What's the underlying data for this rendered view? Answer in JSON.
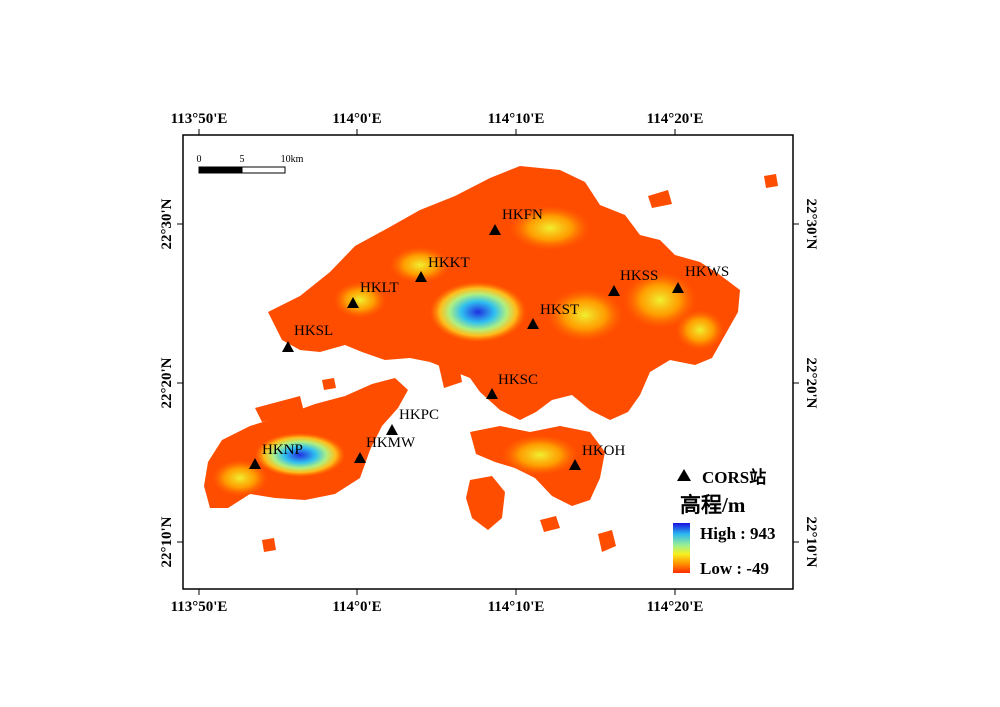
{
  "map": {
    "lon_ticks": [
      "113°50'E",
      "114°0'E",
      "114°10'E",
      "114°20'E"
    ],
    "lat_ticks": [
      "22°30'N",
      "22°20'N",
      "22°10'N"
    ],
    "scale_bar": {
      "labels": [
        "0",
        "5",
        "10km"
      ]
    },
    "stations": [
      {
        "name": "HKFN"
      },
      {
        "name": "HKKT"
      },
      {
        "name": "HKLT"
      },
      {
        "name": "HKSS"
      },
      {
        "name": "HKWS"
      },
      {
        "name": "HKST"
      },
      {
        "name": "HKSL"
      },
      {
        "name": "HKSC"
      },
      {
        "name": "HKPC"
      },
      {
        "name": "HKNP"
      },
      {
        "name": "HKMW"
      },
      {
        "name": "HKOH"
      }
    ],
    "legend": {
      "station_label": "CORS站",
      "elevation_title": "高程/m",
      "high_label": "High : 943",
      "low_label": "Low : -49",
      "ramp_colors": [
        "#1a10e0",
        "#2ab8f0",
        "#9ef090",
        "#f5f020",
        "#ff9a00",
        "#ff2a00"
      ]
    },
    "colors": {
      "land_base": "#ff4d00",
      "frame": "#000000"
    }
  }
}
